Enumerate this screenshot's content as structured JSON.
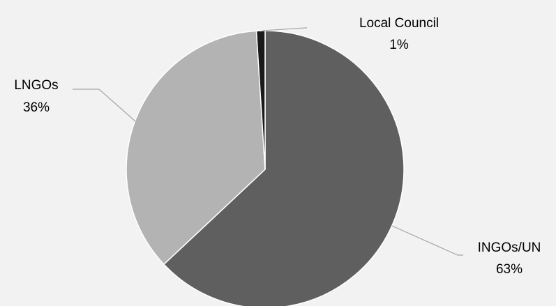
{
  "chart_data": {
    "type": "pie",
    "slices": [
      {
        "label": "INGOs/UN",
        "value": 63,
        "display": "63%",
        "color": "#5f5f5f"
      },
      {
        "label": "LNGOs",
        "value": 36,
        "display": "36%",
        "color": "#b3b3b3"
      },
      {
        "label": "Local Council",
        "value": 1,
        "display": "1%",
        "color": "#1a1a1a"
      }
    ],
    "start": "12 o'clock",
    "direction": "clockwise",
    "legend": "none",
    "background": "#f2f2f2",
    "slice_border": "#ffffff",
    "leader_color": "#a6a6a6"
  }
}
